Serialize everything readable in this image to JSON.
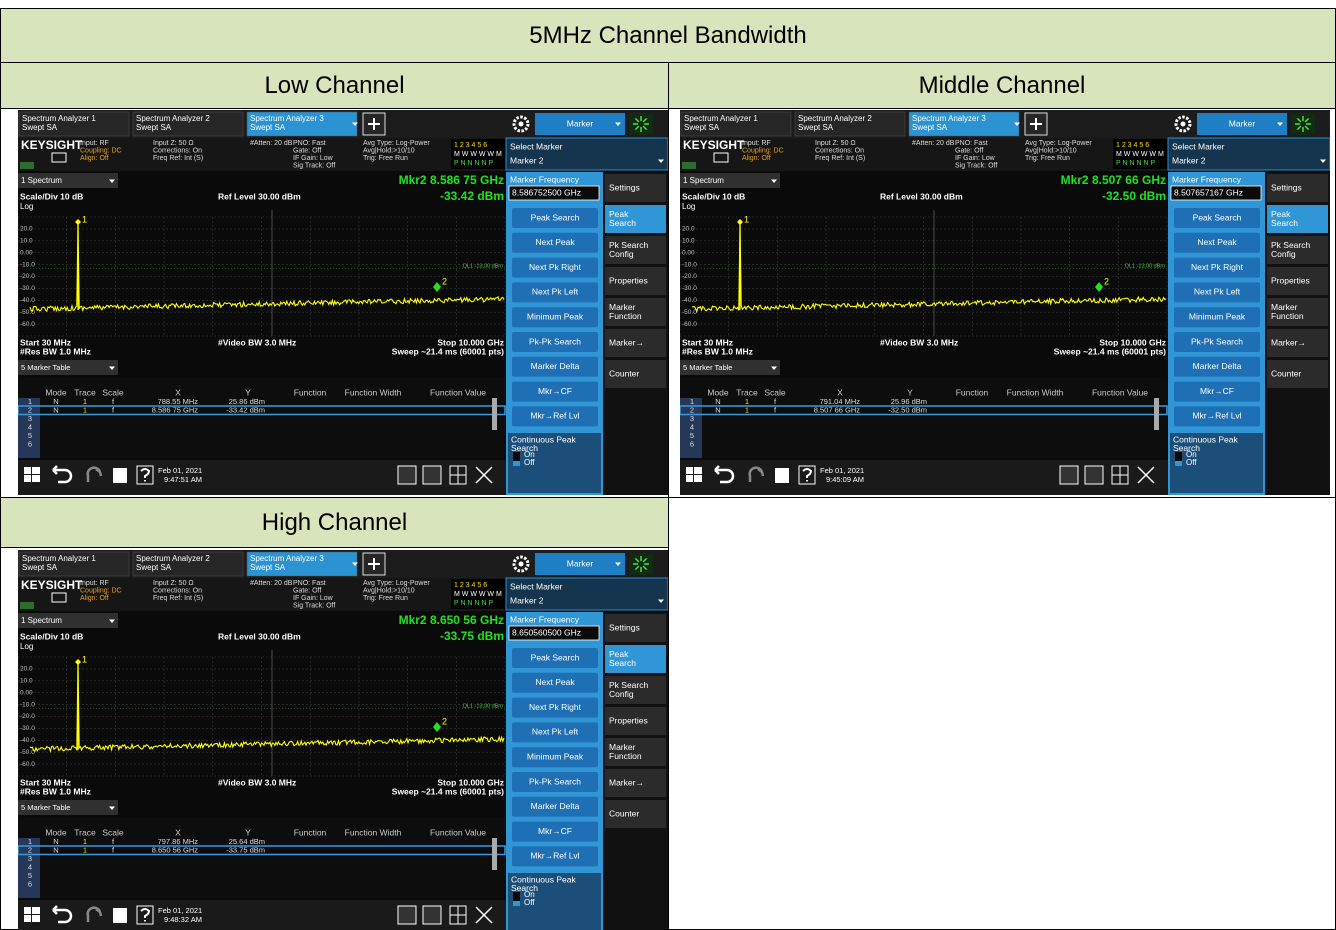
{
  "title": "5MHz Channel Bandwidth",
  "panels": [
    {
      "heading": "Low Channel",
      "screen": {
        "tabs": [
          [
            "Spectrum Analyzer 1",
            "Swept SA"
          ],
          [
            "Spectrum Analyzer 2",
            "Swept SA"
          ],
          [
            "Spectrum Analyzer 3",
            "Swept SA"
          ]
        ],
        "mode_menu": "Marker",
        "brand": "KEYSIGHT",
        "info": [
          [
            "Input: RF",
            "Coupling: DC",
            "Align: Off"
          ],
          [
            "Input Z: 50 Ω",
            "Corrections: On",
            "Freq Ref: Int (S)"
          ],
          [
            "#Atten: 20 dB"
          ],
          [
            "PNO: Fast",
            "Gate: Off",
            "IF Gain: Low",
            "Sig Track: Off"
          ],
          [
            "Avg Type: Log-Power",
            "Avg|Hold:>10/10",
            "Trig: Free Run"
          ]
        ],
        "trace_status": [
          "1 2 3 4 5 6",
          "M W W W W M",
          "P N N N N P"
        ],
        "select_marker_label": "Select Marker",
        "select_marker_value": "Marker 2",
        "window": "1 Spectrum",
        "marker_readout": {
          "freq": "Mkr2  8.586 75 GHz",
          "level": "-33.42 dBm"
        },
        "scale": "Scale/Div 10 dB",
        "ref_level": "Ref Level 30.00 dBm",
        "log": "Log",
        "y_labels": [
          "20.0",
          "10.0",
          "0.00",
          "-10.0",
          "-20.0",
          "-30.0",
          "-40.0",
          "-50.0",
          "-60.0"
        ],
        "display_line": "DL1 -13.00 dBm",
        "footer": {
          "start": "Start 30 MHz",
          "rbw": "#Res BW 1.0 MHz",
          "vbw": "#Video BW 3.0 MHz",
          "stop": "Stop 10.000 GHz",
          "sweep": "Sweep ~21.4 ms (60001 pts)"
        },
        "marker_labels": [
          "1",
          "2"
        ],
        "table_window": "5 Marker Table",
        "table": {
          "headers": [
            "Mode",
            "Trace",
            "Scale",
            "X",
            "Y",
            "Function",
            "Function Width",
            "Function Value"
          ],
          "rows": [
            [
              "1",
              "N",
              "1",
              "f",
              "788.55 MHz",
              "25.86 dBm"
            ],
            [
              "2",
              "N",
              "1",
              "f",
              "8.586 75 GHz",
              "-33.42 dBm"
            ],
            [
              "3"
            ],
            [
              "4"
            ],
            [
              "5"
            ],
            [
              "6"
            ]
          ]
        },
        "menu": {
          "field_label": "Marker Frequency",
          "field_value": "8.586752500 GHz",
          "buttons": [
            "Peak Search",
            "Next Peak",
            "Next Pk Right",
            "Next Pk Left",
            "Minimum Peak",
            "Pk-Pk Search",
            "Marker Delta",
            "Mkr→CF",
            "Mkr→Ref Lvl"
          ],
          "toggle_label": [
            "Continuous Peak",
            "Search"
          ],
          "toggle_options": [
            "On",
            "Off"
          ]
        },
        "side_tabs": [
          [
            "Settings"
          ],
          [
            "Peak",
            "Search"
          ],
          [
            "Pk Search",
            "Config"
          ],
          [
            "Properties"
          ],
          [
            "Marker",
            "Function"
          ],
          [
            "Marker→"
          ],
          [
            "Counter"
          ]
        ],
        "date": "Feb 01, 2021",
        "time": "9:47:51 AM"
      }
    },
    {
      "heading": "Middle Channel",
      "screen": {
        "tabs": [
          [
            "Spectrum Analyzer 1",
            "Swept SA"
          ],
          [
            "Spectrum Analyzer 2",
            "Swept SA"
          ],
          [
            "Spectrum Analyzer 3",
            "Swept SA"
          ]
        ],
        "mode_menu": "Marker",
        "brand": "KEYSIGHT",
        "info": [
          [
            "Input: RF",
            "Coupling: DC",
            "Align: Off"
          ],
          [
            "Input Z: 50 Ω",
            "Corrections: On",
            "Freq Ref: Int (S)"
          ],
          [
            "#Atten: 20 dB"
          ],
          [
            "PNO: Fast",
            "Gate: Off",
            "IF Gain: Low",
            "Sig Track: Off"
          ],
          [
            "Avg Type: Log-Power",
            "Avg|Hold:>10/10",
            "Trig: Free Run"
          ]
        ],
        "trace_status": [
          "1 2 3 4 5 6",
          "M W W W W M",
          "P N N N N P"
        ],
        "select_marker_label": "Select Marker",
        "select_marker_value": "Marker 2",
        "window": "1 Spectrum",
        "marker_readout": {
          "freq": "Mkr2  8.507 66 GHz",
          "level": "-32.50 dBm"
        },
        "scale": "Scale/Div 10 dB",
        "ref_level": "Ref Level 30.00 dBm",
        "log": "Log",
        "y_labels": [
          "20.0",
          "10.0",
          "0.00",
          "-10.0",
          "-20.0",
          "-30.0",
          "-40.0",
          "-50.0",
          "-60.0"
        ],
        "display_line": "DL1 -13.00 dBm",
        "footer": {
          "start": "Start 30 MHz",
          "rbw": "#Res BW 1.0 MHz",
          "vbw": "#Video BW 3.0 MHz",
          "stop": "Stop 10.000 GHz",
          "sweep": "Sweep ~21.4 ms (60001 pts)"
        },
        "marker_labels": [
          "1",
          "2"
        ],
        "table_window": "5 Marker Table",
        "table": {
          "headers": [
            "Mode",
            "Trace",
            "Scale",
            "X",
            "Y",
            "Function",
            "Function Width",
            "Function Value"
          ],
          "rows": [
            [
              "1",
              "N",
              "1",
              "f",
              "791.04 MHz",
              "25.96 dBm"
            ],
            [
              "2",
              "N",
              "1",
              "f",
              "8.507 66 GHz",
              "-32.50 dBm"
            ],
            [
              "3"
            ],
            [
              "4"
            ],
            [
              "5"
            ],
            [
              "6"
            ]
          ]
        },
        "menu": {
          "field_label": "Marker Frequency",
          "field_value": "8.507657167 GHz",
          "buttons": [
            "Peak Search",
            "Next Peak",
            "Next Pk Right",
            "Next Pk Left",
            "Minimum Peak",
            "Pk-Pk Search",
            "Marker Delta",
            "Mkr→CF",
            "Mkr→Ref Lvl"
          ],
          "toggle_label": [
            "Continuous Peak",
            "Search"
          ],
          "toggle_options": [
            "On",
            "Off"
          ]
        },
        "side_tabs": [
          [
            "Settings"
          ],
          [
            "Peak",
            "Search"
          ],
          [
            "Pk Search",
            "Config"
          ],
          [
            "Properties"
          ],
          [
            "Marker",
            "Function"
          ],
          [
            "Marker→"
          ],
          [
            "Counter"
          ]
        ],
        "date": "Feb 01, 2021",
        "time": "9:45:09 AM"
      }
    },
    {
      "heading": "High Channel",
      "screen": {
        "tabs": [
          [
            "Spectrum Analyzer 1",
            "Swept SA"
          ],
          [
            "Spectrum Analyzer 2",
            "Swept SA"
          ],
          [
            "Spectrum Analyzer 3",
            "Swept SA"
          ]
        ],
        "mode_menu": "Marker",
        "brand": "KEYSIGHT",
        "info": [
          [
            "Input: RF",
            "Coupling: DC",
            "Align: Off"
          ],
          [
            "Input Z: 50 Ω",
            "Corrections: On",
            "Freq Ref: Int (S)"
          ],
          [
            "#Atten: 20 dB"
          ],
          [
            "PNO: Fast",
            "Gate: Off",
            "IF Gain: Low",
            "Sig Track: Off"
          ],
          [
            "Avg Type: Log-Power",
            "Avg|Hold:>10/10",
            "Trig: Free Run"
          ]
        ],
        "trace_status": [
          "1 2 3 4 5 6",
          "M W W W W M",
          "P N N N N P"
        ],
        "select_marker_label": "Select Marker",
        "select_marker_value": "Marker 2",
        "window": "1 Spectrum",
        "marker_readout": {
          "freq": "Mkr2  8.650 56 GHz",
          "level": "-33.75 dBm"
        },
        "scale": "Scale/Div 10 dB",
        "ref_level": "Ref Level 30.00 dBm",
        "log": "Log",
        "y_labels": [
          "20.0",
          "10.0",
          "0.00",
          "-10.0",
          "-20.0",
          "-30.0",
          "-40.0",
          "-50.0",
          "-60.0"
        ],
        "display_line": "DL1 -13.00 dBm",
        "footer": {
          "start": "Start 30 MHz",
          "rbw": "#Res BW 1.0 MHz",
          "vbw": "#Video BW 3.0 MHz",
          "stop": "Stop 10.000 GHz",
          "sweep": "Sweep ~21.4 ms (60001 pts)"
        },
        "marker_labels": [
          "1",
          "2"
        ],
        "table_window": "5 Marker Table",
        "table": {
          "headers": [
            "Mode",
            "Trace",
            "Scale",
            "X",
            "Y",
            "Function",
            "Function Width",
            "Function Value"
          ],
          "rows": [
            [
              "1",
              "N",
              "1",
              "f",
              "797.86 MHz",
              "25.64 dBm"
            ],
            [
              "2",
              "N",
              "1",
              "f",
              "8.650 56 GHz",
              "-33.75 dBm"
            ],
            [
              "3"
            ],
            [
              "4"
            ],
            [
              "5"
            ],
            [
              "6"
            ]
          ]
        },
        "menu": {
          "field_label": "Marker Frequency",
          "field_value": "8.650560500 GHz",
          "buttons": [
            "Peak Search",
            "Next Peak",
            "Next Pk Right",
            "Next Pk Left",
            "Minimum Peak",
            "Pk-Pk Search",
            "Marker Delta",
            "Mkr→CF",
            "Mkr→Ref Lvl"
          ],
          "toggle_label": [
            "Continuous Peak",
            "Search"
          ],
          "toggle_options": [
            "On",
            "Off"
          ]
        },
        "side_tabs": [
          [
            "Settings"
          ],
          [
            "Peak",
            "Search"
          ],
          [
            "Pk Search",
            "Config"
          ],
          [
            "Properties"
          ],
          [
            "Marker",
            "Function"
          ],
          [
            "Marker→"
          ],
          [
            "Counter"
          ]
        ],
        "date": "Feb 01, 2021",
        "time": "9:48:32 AM"
      }
    }
  ]
}
